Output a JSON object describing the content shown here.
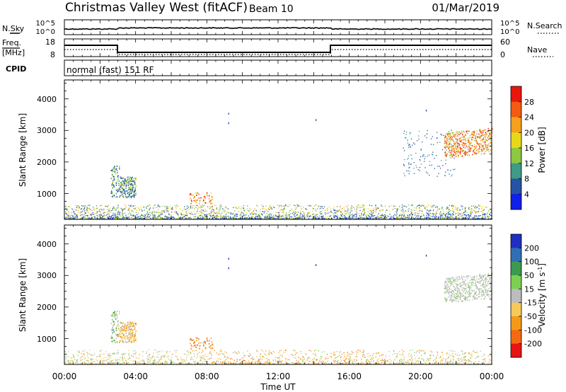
{
  "header": {
    "site": "Christmas Valley West (fitACF)",
    "beam": "Beam 10",
    "date": "01/Mar/2019"
  },
  "strips": {
    "noise_label": "N.Sky",
    "noise_right_label": "N.Search",
    "noise_ticks_left": [
      "10^5",
      "10^0"
    ],
    "noise_ticks_right": [
      "10^5",
      "10^0"
    ],
    "freq_label_1": "Freq.",
    "freq_label_2": "[MHz]",
    "freq_ticks": [
      "18",
      "8"
    ],
    "nave_label": "Nave",
    "nave_ticks": [
      "60",
      "0"
    ],
    "cpid_label": "CPID",
    "cpid_text": "normal (fast) 151 RF"
  },
  "chart_data": [
    {
      "type": "heatmap",
      "quantity": "Power",
      "ylabel": "Slant Range [km]",
      "colorbar_label": "Power [dB]",
      "colorbar_ticks": [
        "28",
        "24",
        "20",
        "16",
        "12",
        "8",
        "4"
      ],
      "colorbar_colors": [
        "#e8160c",
        "#f35b10",
        "#f7a01c",
        "#e8d81a",
        "#8cc840",
        "#3f9a86",
        "#2553a6",
        "#1020e8"
      ],
      "ylim": [
        180,
        4600
      ],
      "yticks": [
        "1000",
        "2000",
        "3000",
        "4000"
      ],
      "xlim_hours": [
        0,
        24
      ],
      "echo_regions": [
        {
          "t_start": "02:40",
          "t_end": "04:00",
          "range_km": [
            800,
            1900
          ],
          "level": "medium"
        },
        {
          "t_start": "07:00",
          "t_end": "08:20",
          "range_km": [
            600,
            1000
          ],
          "level": "high"
        },
        {
          "t_start": "19:00",
          "t_end": "23:00",
          "range_km": [
            1500,
            3100
          ],
          "level": "low"
        },
        {
          "t_start": "21:20",
          "t_end": "24:00",
          "range_km": [
            2000,
            3000
          ],
          "level": "high"
        },
        {
          "t_start": "00:00",
          "t_end": "24:00",
          "range_km": [
            180,
            550
          ],
          "level": "mixed"
        }
      ]
    },
    {
      "type": "heatmap",
      "quantity": "Velocity",
      "ylabel": "Slant Range [km]",
      "colorbar_label": "Velocity [m s^-1]",
      "colorbar_ticks": [
        "200",
        "100",
        "50",
        "15",
        "-15",
        "-50",
        "-100",
        "-200"
      ],
      "colorbar_colors": [
        "#1f2fbf",
        "#2f6fb4",
        "#3c9a50",
        "#7cd050",
        "#bdbdbd",
        "#f5c95a",
        "#f59a18",
        "#f56a10",
        "#e81414"
      ],
      "ylim": [
        180,
        4600
      ],
      "yticks": [
        "1000",
        "2000",
        "3000",
        "4000"
      ],
      "xlim_hours": [
        0,
        24
      ],
      "echo_regions": [
        {
          "t_start": "02:40",
          "t_end": "04:00",
          "range_km": [
            800,
            1900
          ],
          "level": "mixed"
        },
        {
          "t_start": "07:00",
          "t_end": "08:20",
          "range_km": [
            600,
            1000
          ],
          "level": "away"
        },
        {
          "t_start": "21:20",
          "t_end": "24:00",
          "range_km": [
            2000,
            3000
          ],
          "level": "near-zero"
        },
        {
          "t_start": "00:00",
          "t_end": "24:00",
          "range_km": [
            180,
            550
          ],
          "level": "away"
        }
      ]
    }
  ],
  "xaxis": {
    "label": "Time UT",
    "ticks": [
      "00:00",
      "04:00",
      "08:00",
      "12:00",
      "16:00",
      "20:00",
      "00:00"
    ]
  }
}
